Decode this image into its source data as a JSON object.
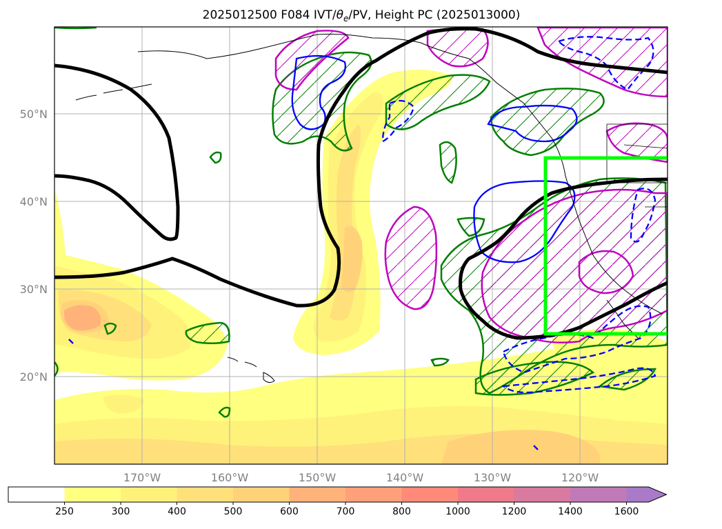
{
  "chart_data": {
    "type": "map",
    "title_prefix": "2025012500 F084 IVT/",
    "title_theta": "θ",
    "title_sub": "e",
    "title_suffix": "/PV, Height PC (2025013000)",
    "lon_ticks": [
      "170°W",
      "160°W",
      "150°W",
      "140°W",
      "130°W",
      "120°W"
    ],
    "lat_ticks": [
      "50°N",
      "40°N",
      "30°N",
      "20°N"
    ],
    "lon_values": [
      -170,
      -160,
      -150,
      -140,
      -130,
      -120
    ],
    "lat_values": [
      50,
      40,
      30,
      20
    ],
    "extent": {
      "lon": [
        -180,
        -110
      ],
      "lat": [
        10,
        60
      ]
    },
    "grid": true,
    "ivt_fill": {
      "variable": "IVT",
      "levels": [
        "250",
        "300",
        "400",
        "500",
        "600",
        "700",
        "800",
        "1000",
        "1200",
        "1400",
        "1600"
      ],
      "colors": [
        "#ffffff",
        "#ffff80",
        "#fff27a",
        "#ffe07a",
        "#ffd27a",
        "#ffb37a",
        "#ffa07a",
        "#ff8a7a",
        "#ee7a8a",
        "#d97aa0",
        "#c07ab8",
        "#a87ac8"
      ],
      "extend": "max"
    },
    "highlight_box": {
      "lon": [
        -124,
        -110
      ],
      "lat": [
        25,
        45
      ],
      "color": "#00ff00"
    },
    "contour_colors": {
      "height": "#000000",
      "theta_e": "#0000ff",
      "pv_green": "#007f00",
      "pv_magenta": "#bf00bf"
    }
  }
}
